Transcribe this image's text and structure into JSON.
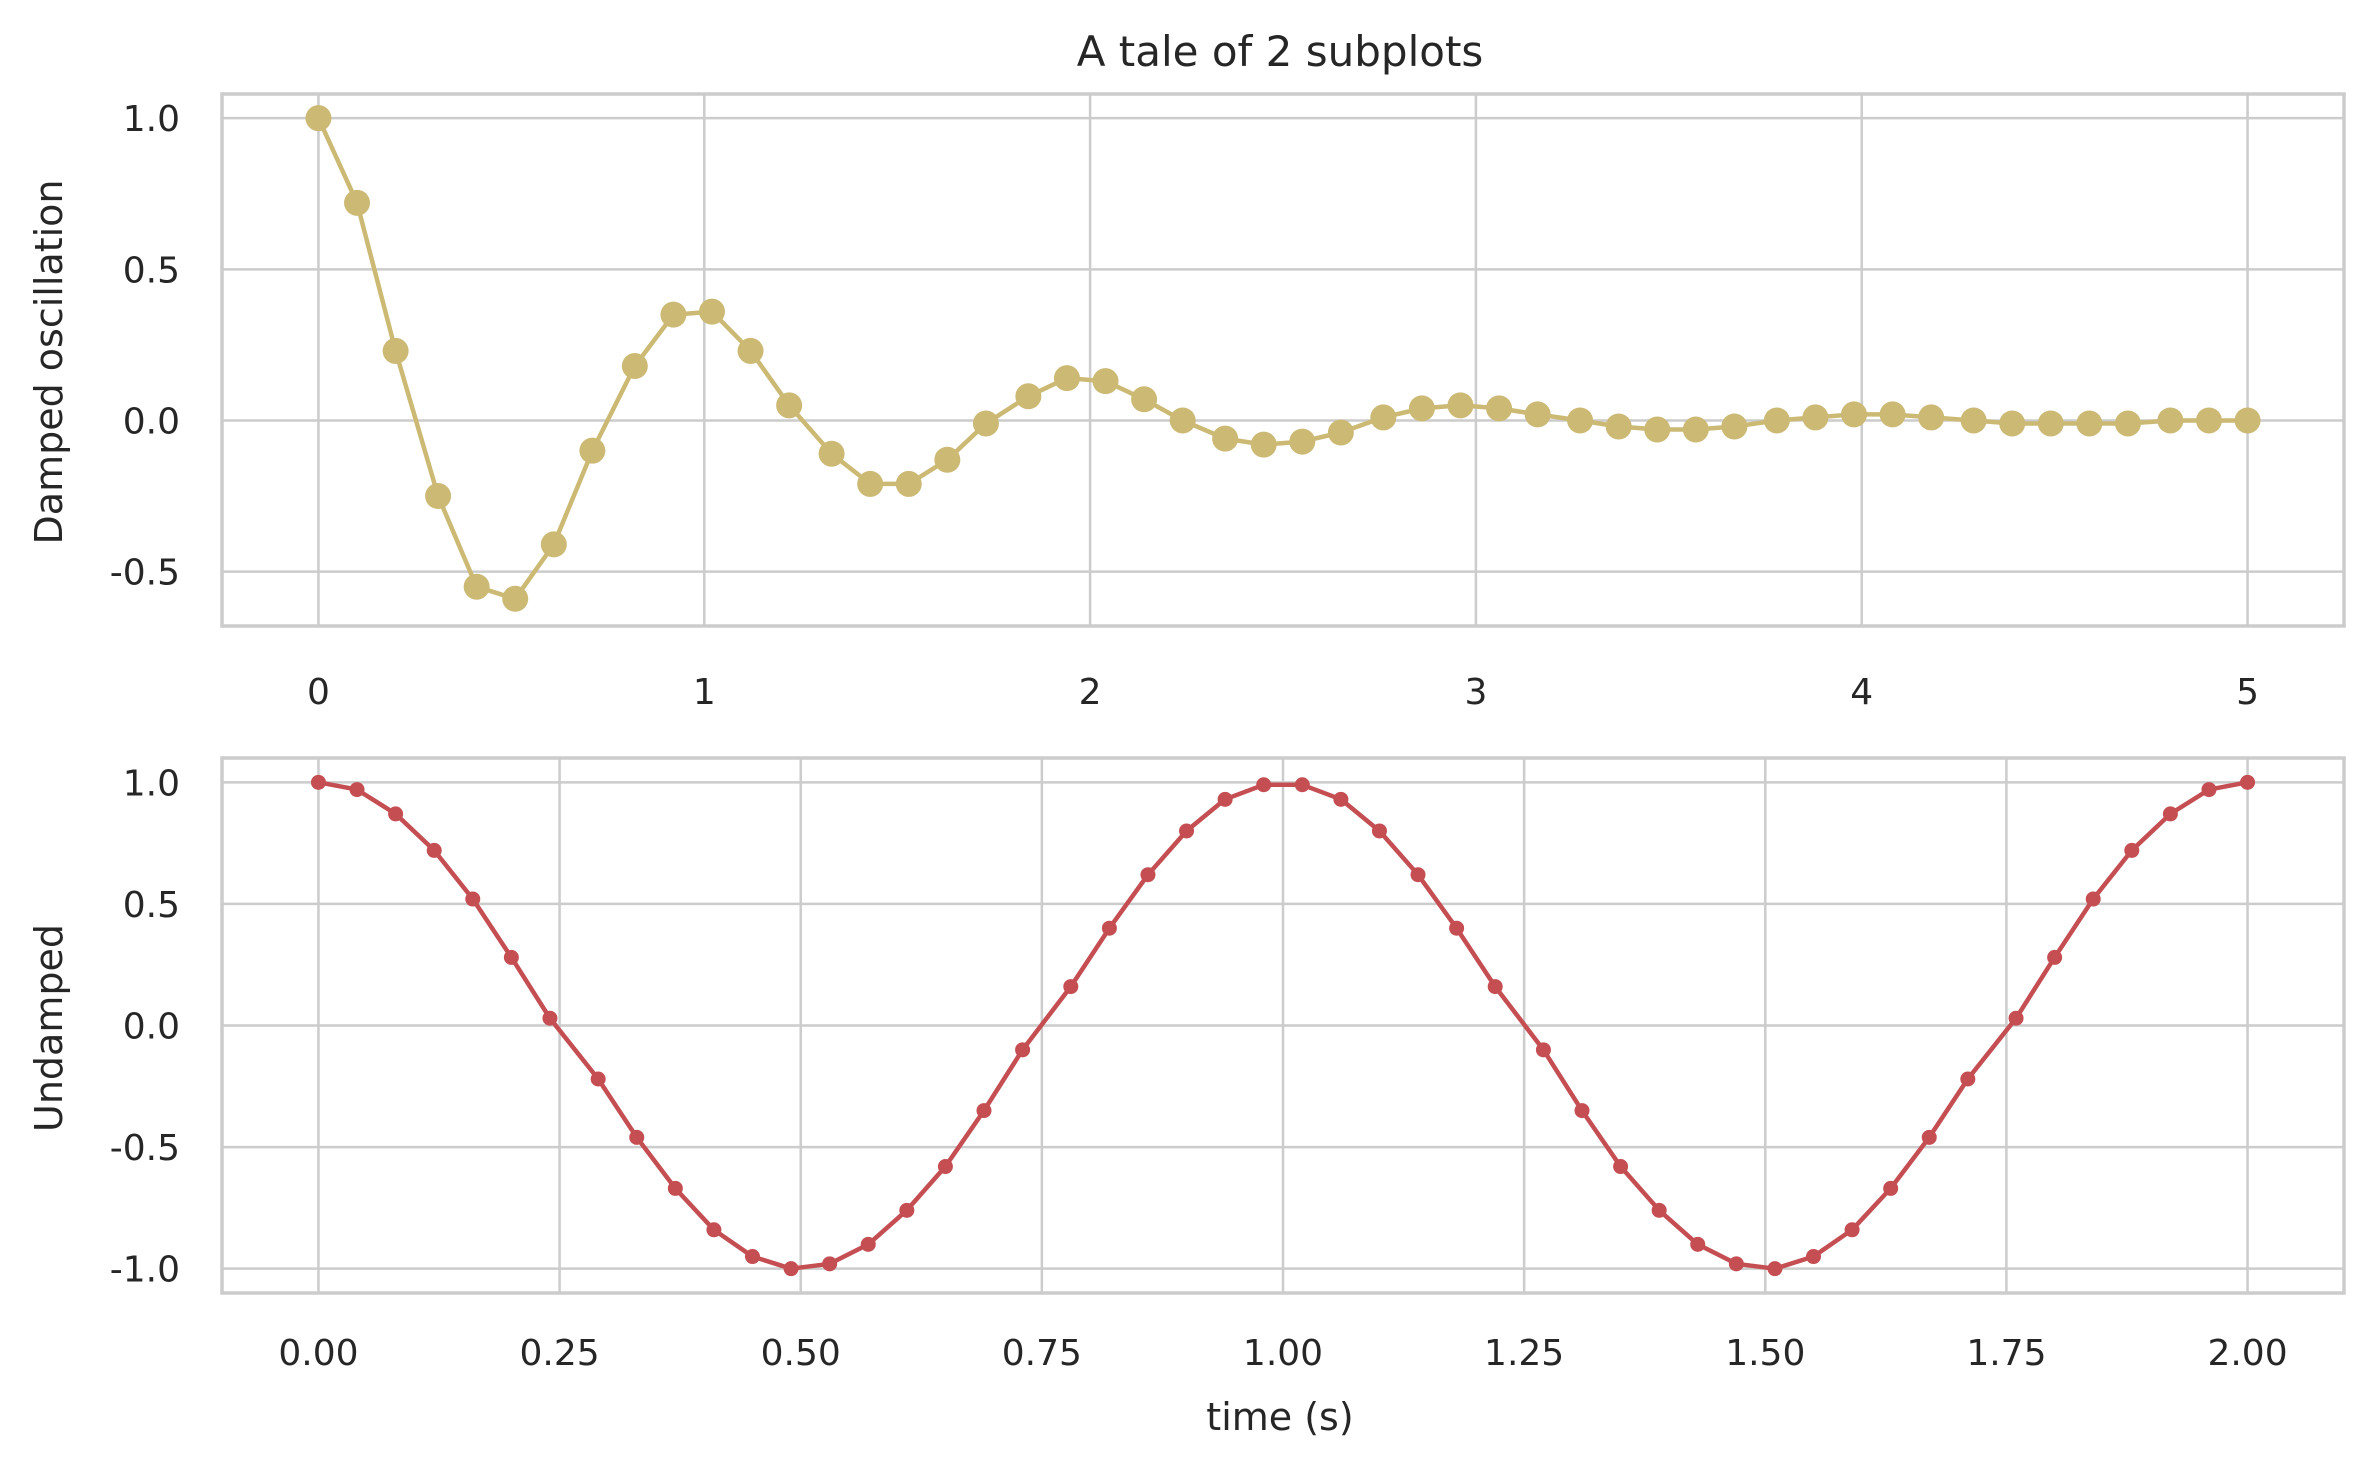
{
  "chart_data": [
    {
      "type": "line",
      "title": "A tale of 2 subplots",
      "xlabel": "",
      "ylabel": "Damped oscillation",
      "xlim": [
        -0.25,
        5.25
      ],
      "ylim": [
        -0.68,
        1.08
      ],
      "x_ticks": [
        0,
        1,
        2,
        3,
        4,
        5
      ],
      "x_tick_labels": [
        "0",
        "1",
        "2",
        "3",
        "4",
        "5"
      ],
      "y_ticks": [
        1.0,
        0.5,
        0.0,
        -0.5
      ],
      "y_tick_labels": [
        "1.0",
        "0.5",
        "0.0",
        "-0.5"
      ],
      "grid": true,
      "series": [
        {
          "color": "#ccb974",
          "marker": "circle-large",
          "x": [
            0.0,
            0.1,
            0.2,
            0.31,
            0.41,
            0.51,
            0.61,
            0.71,
            0.82,
            0.92,
            1.02,
            1.12,
            1.22,
            1.33,
            1.43,
            1.53,
            1.63,
            1.73,
            1.84,
            1.94,
            2.04,
            2.14,
            2.24,
            2.35,
            2.45,
            2.55,
            2.65,
            2.76,
            2.86,
            2.96,
            3.06,
            3.16,
            3.27,
            3.37,
            3.47,
            3.57,
            3.67,
            3.78,
            3.88,
            3.98,
            4.08,
            4.18,
            4.29,
            4.39,
            4.49,
            4.59,
            4.69,
            4.8,
            4.9,
            5.0
          ],
          "values": [
            1.0,
            0.72,
            0.23,
            -0.25,
            -0.55,
            -0.59,
            -0.41,
            -0.1,
            0.18,
            0.35,
            0.36,
            0.23,
            0.05,
            -0.11,
            -0.21,
            -0.21,
            -0.13,
            -0.01,
            0.08,
            0.14,
            0.13,
            0.07,
            0.0,
            -0.06,
            -0.08,
            -0.07,
            -0.04,
            0.01,
            0.04,
            0.05,
            0.04,
            0.02,
            0.0,
            -0.02,
            -0.03,
            -0.03,
            -0.02,
            0.0,
            0.01,
            0.02,
            0.02,
            0.01,
            0.0,
            -0.01,
            -0.01,
            -0.01,
            -0.01,
            0.0,
            0.0,
            0.0
          ]
        }
      ]
    },
    {
      "type": "line",
      "title": "",
      "xlabel": "time (s)",
      "ylabel": "Undamped",
      "xlim": [
        -0.1,
        2.1
      ],
      "ylim": [
        -1.1,
        1.1
      ],
      "x_ticks": [
        0.0,
        0.25,
        0.5,
        0.75,
        1.0,
        1.25,
        1.5,
        1.75,
        2.0
      ],
      "x_tick_labels": [
        "0.00",
        "0.25",
        "0.50",
        "0.75",
        "1.00",
        "1.25",
        "1.50",
        "1.75",
        "2.00"
      ],
      "y_ticks": [
        1.0,
        0.5,
        0.0,
        -0.5,
        -1.0
      ],
      "y_tick_labels": [
        "1.0",
        "0.5",
        "0.0",
        "-0.5",
        "-1.0"
      ],
      "grid": true,
      "series": [
        {
          "color": "#c44e52",
          "marker": "circle-small",
          "x": [
            0.0,
            0.04,
            0.08,
            0.12,
            0.16,
            0.2,
            0.24,
            0.29,
            0.33,
            0.37,
            0.41,
            0.45,
            0.49,
            0.53,
            0.57,
            0.61,
            0.65,
            0.69,
            0.73,
            0.78,
            0.82,
            0.86,
            0.9,
            0.94,
            0.98,
            1.02,
            1.06,
            1.1,
            1.14,
            1.18,
            1.22,
            1.27,
            1.31,
            1.35,
            1.39,
            1.43,
            1.47,
            1.51,
            1.55,
            1.59,
            1.63,
            1.67,
            1.71,
            1.76,
            1.8,
            1.84,
            1.88,
            1.92,
            1.96,
            2.0
          ],
          "values": [
            1.0,
            0.97,
            0.87,
            0.72,
            0.52,
            0.28,
            0.03,
            -0.22,
            -0.46,
            -0.67,
            -0.84,
            -0.95,
            -1.0,
            -0.98,
            -0.9,
            -0.76,
            -0.58,
            -0.35,
            -0.1,
            0.16,
            0.4,
            0.62,
            0.8,
            0.93,
            0.99,
            0.99,
            0.93,
            0.8,
            0.62,
            0.4,
            0.16,
            -0.1,
            -0.35,
            -0.58,
            -0.76,
            -0.9,
            -0.98,
            -1.0,
            -0.95,
            -0.84,
            -0.67,
            -0.46,
            -0.22,
            0.03,
            0.28,
            0.52,
            0.72,
            0.87,
            0.97,
            1.0
          ]
        }
      ]
    }
  ]
}
